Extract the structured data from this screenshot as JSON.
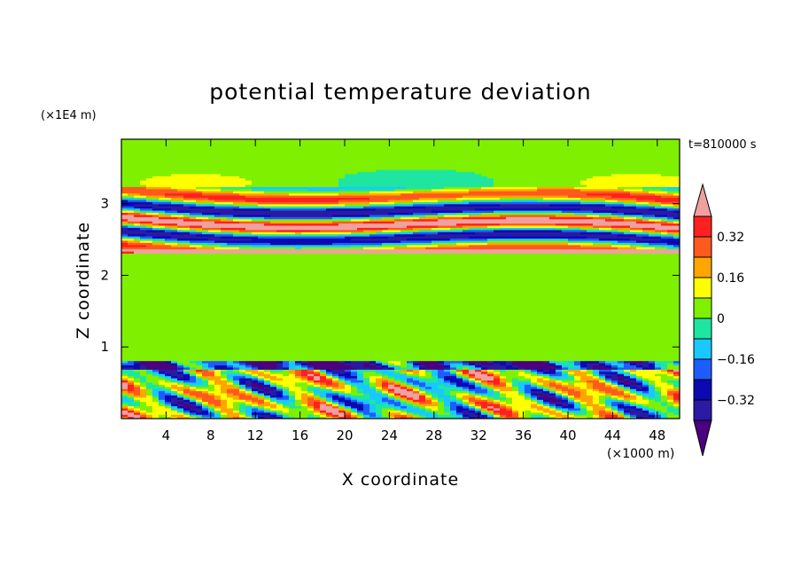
{
  "chart_data": {
    "type": "heatmap",
    "title": "potential temperature deviation",
    "time_label": "t=810000 s",
    "xlabel": "X coordinate",
    "ylabel": "Z coordinate",
    "x_unit": "(×1000 m)",
    "y_unit": "(×1E4 m)",
    "xlim": [
      0,
      50
    ],
    "ylim": [
      0,
      3.9
    ],
    "x_ticks": [
      4,
      8,
      12,
      16,
      20,
      24,
      28,
      32,
      36,
      40,
      44,
      48
    ],
    "y_ticks": [
      1,
      2,
      3
    ],
    "colorbar": {
      "labels": [
        "0.32",
        "0.16",
        "0",
        "−0.16",
        "−0.32"
      ],
      "label_values": [
        0.32,
        0.16,
        0,
        -0.16,
        -0.32
      ],
      "levels": [
        -0.4,
        -0.32,
        -0.24,
        -0.16,
        -0.08,
        0,
        0.08,
        0.16,
        0.24,
        0.32,
        0.4
      ],
      "colors_low_to_high": [
        "#4b007f",
        "#2b1aa3",
        "#0a0ab0",
        "#1e5cff",
        "#19c8ff",
        "#1ee6a0",
        "#7ff000",
        "#ffff00",
        "#ffa500",
        "#ff5a1e",
        "#ff2020",
        "#f0a0a0"
      ],
      "extend": "both"
    }
  }
}
